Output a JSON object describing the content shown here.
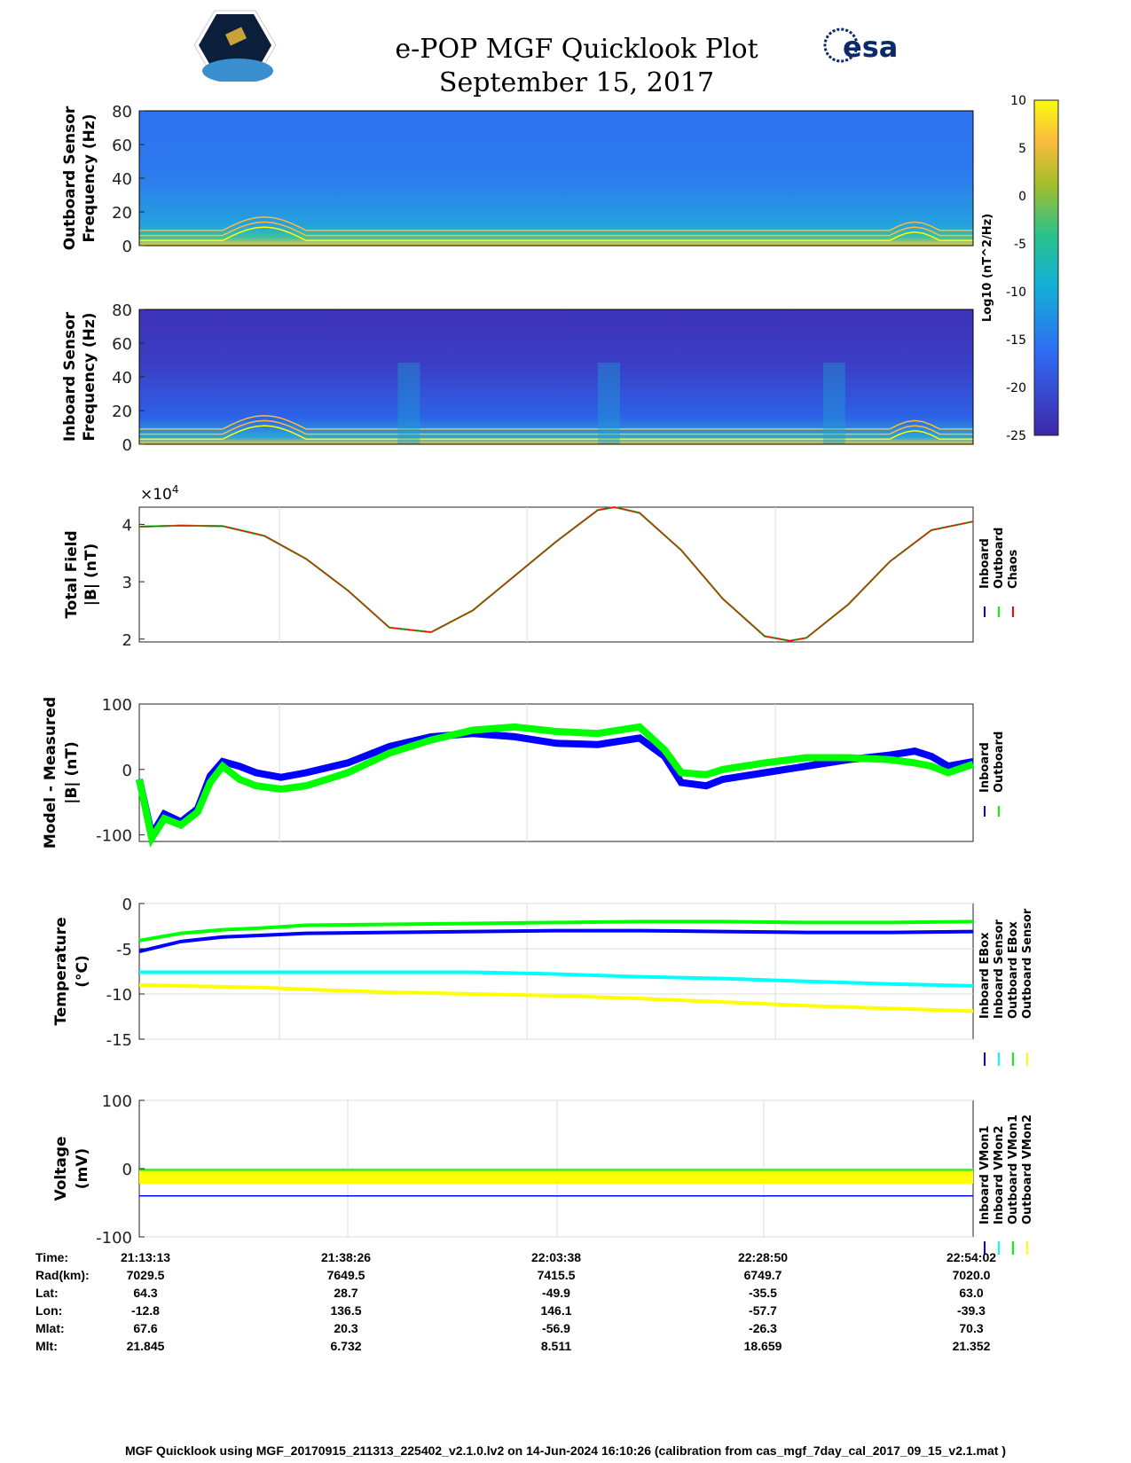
{
  "header": {
    "title": "e-POP MGF Quicklook Plot",
    "date": "September 15, 2017",
    "logo_left": "CASSIOPE",
    "logo_right": "esa"
  },
  "colorbar": {
    "label": "Log10 (nT^2/Hz)",
    "ticks": [
      10,
      5,
      0,
      -5,
      -10,
      -15,
      -20,
      -25
    ],
    "range": [
      -25,
      10
    ]
  },
  "chart_data": [
    {
      "type": "heatmap",
      "title": "",
      "ylabel": "Outboard Sensor Frequency (Hz)",
      "ylim": [
        0,
        80
      ],
      "yticks": [
        0,
        20,
        40,
        60,
        80
      ]
    },
    {
      "type": "heatmap",
      "title": "",
      "ylabel": "Inboard Sensor Frequency (Hz)",
      "ylim": [
        0,
        80
      ],
      "yticks": [
        0,
        20,
        40,
        60,
        80
      ]
    },
    {
      "type": "line",
      "ylabel": "Total Field |B| (nT)",
      "exponent": "×10",
      "exponent_power": "4",
      "ylim": [
        1.95,
        4.3
      ],
      "yticks": [
        2,
        3,
        4
      ],
      "legend": [
        "Inboard",
        "Outboard",
        "Chaos"
      ],
      "colors": [
        "#0000ff",
        "#00ff00",
        "#ff0000"
      ],
      "x": [
        0,
        0.05,
        0.1,
        0.15,
        0.2,
        0.25,
        0.3,
        0.35,
        0.4,
        0.45,
        0.5,
        0.55,
        0.57,
        0.6,
        0.65,
        0.7,
        0.75,
        0.78,
        0.8,
        0.85,
        0.9,
        0.95,
        1
      ],
      "series": [
        {
          "name": "Chaos",
          "values": [
            3.96,
            3.98,
            3.97,
            3.8,
            3.4,
            2.85,
            2.2,
            2.12,
            2.5,
            3.1,
            3.7,
            4.25,
            4.3,
            4.2,
            3.55,
            2.7,
            2.05,
            1.97,
            2.02,
            2.6,
            3.35,
            3.9,
            4.05
          ]
        }
      ]
    },
    {
      "type": "line",
      "ylabel": "Model - Measured |B| (nT)",
      "ylim": [
        -110,
        100
      ],
      "yticks": [
        -100,
        0,
        100
      ],
      "legend": [
        "Inboard",
        "Outboard"
      ],
      "colors": [
        "#0000ff",
        "#00ff00"
      ],
      "x": [
        0,
        0.015,
        0.03,
        0.05,
        0.07,
        0.085,
        0.1,
        0.12,
        0.14,
        0.17,
        0.2,
        0.25,
        0.3,
        0.35,
        0.4,
        0.45,
        0.5,
        0.55,
        0.6,
        0.63,
        0.65,
        0.68,
        0.7,
        0.75,
        0.8,
        0.85,
        0.9,
        0.93,
        0.95,
        0.97,
        1
      ],
      "series": [
        {
          "name": "Inboard",
          "values": [
            -15,
            -100,
            -68,
            -80,
            -60,
            -10,
            12,
            5,
            -5,
            -12,
            -5,
            10,
            35,
            50,
            55,
            50,
            40,
            38,
            48,
            20,
            -20,
            -25,
            -15,
            -5,
            5,
            15,
            22,
            28,
            20,
            5,
            12
          ]
        },
        {
          "name": "Outboard",
          "values": [
            -15,
            -105,
            -75,
            -85,
            -65,
            -20,
            5,
            -15,
            -25,
            -30,
            -25,
            -5,
            25,
            45,
            60,
            65,
            58,
            55,
            65,
            30,
            -5,
            -8,
            0,
            10,
            18,
            18,
            15,
            10,
            5,
            -5,
            8
          ]
        }
      ]
    },
    {
      "type": "line",
      "ylabel": "Temperature (°C)",
      "ylim": [
        -15,
        0
      ],
      "yticks": [
        -15,
        -10,
        -5,
        0
      ],
      "legend": [
        "Inboard EBox",
        "Inboard Sensor",
        "Outboard EBox",
        "Outboard Sensor"
      ],
      "colors": [
        "#0000ff",
        "#00ffff",
        "#00ff00",
        "#ffff00"
      ],
      "x": [
        0,
        0.05,
        0.1,
        0.15,
        0.2,
        0.3,
        0.4,
        0.5,
        0.6,
        0.7,
        0.8,
        0.9,
        1
      ],
      "series": [
        {
          "name": "Inboard EBox",
          "values": [
            -5.3,
            -4.2,
            -3.7,
            -3.5,
            -3.3,
            -3.2,
            -3.1,
            -3.0,
            -3.0,
            -3.1,
            -3.2,
            -3.2,
            -3.1
          ]
        },
        {
          "name": "Inboard Sensor",
          "values": [
            -7.6,
            -7.6,
            -7.6,
            -7.6,
            -7.6,
            -7.6,
            -7.6,
            -7.8,
            -8.1,
            -8.3,
            -8.6,
            -8.9,
            -9.1
          ]
        },
        {
          "name": "Outboard EBox",
          "values": [
            -4.1,
            -3.3,
            -2.9,
            -2.7,
            -2.4,
            -2.3,
            -2.2,
            -2.1,
            -2.0,
            -2.0,
            -2.1,
            -2.1,
            -2.0
          ]
        },
        {
          "name": "Outboard Sensor",
          "values": [
            -9.0,
            -9.1,
            -9.2,
            -9.3,
            -9.5,
            -9.8,
            -10.0,
            -10.2,
            -10.5,
            -10.9,
            -11.3,
            -11.6,
            -11.9
          ]
        }
      ]
    },
    {
      "type": "line",
      "ylabel": "Voltage (mV)",
      "ylim": [
        -100,
        100
      ],
      "yticks": [
        -100,
        0,
        100
      ],
      "legend": [
        "Inboard VMon1",
        "Inboard VMon2",
        "Outboard VMon1",
        "Outboard VMon2"
      ],
      "colors": [
        "#0000ff",
        "#00ffff",
        "#00ff00",
        "#ffff00"
      ],
      "x": [
        0,
        1
      ],
      "series": [
        {
          "name": "Inboard VMon1",
          "values": [
            -40,
            -40
          ]
        },
        {
          "name": "Outboard VMon1",
          "values": [
            -2,
            -2
          ]
        },
        {
          "name": "Outboard VMon2",
          "values": [
            -10,
            -10
          ]
        }
      ]
    }
  ],
  "orbit": {
    "labels": [
      "Time:",
      "Rad(km):",
      "Lat:",
      "Lon:",
      "Mlat:",
      "Mlt:"
    ],
    "columns": [
      [
        "21:13:13",
        "7029.5",
        "64.3",
        "-12.8",
        "67.6",
        "21.845"
      ],
      [
        "21:38:26",
        "7649.5",
        "28.7",
        "136.5",
        "20.3",
        "6.732"
      ],
      [
        "22:03:38",
        "7415.5",
        "-49.9",
        "146.1",
        "-56.9",
        "8.511"
      ],
      [
        "22:28:50",
        "6749.7",
        "-35.5",
        "-57.7",
        "-26.3",
        "18.659"
      ],
      [
        "22:54:02",
        "7020.0",
        "63.0",
        "-39.3",
        "70.3",
        "21.352"
      ]
    ]
  },
  "footer": "MGF Quicklook using MGF_20170915_211313_225402_v2.1.0.lv2 on 14-Jun-2024 16:10:26 (calibration from cas_mgf_7day_cal_2017_09_15_v2.1.mat )"
}
